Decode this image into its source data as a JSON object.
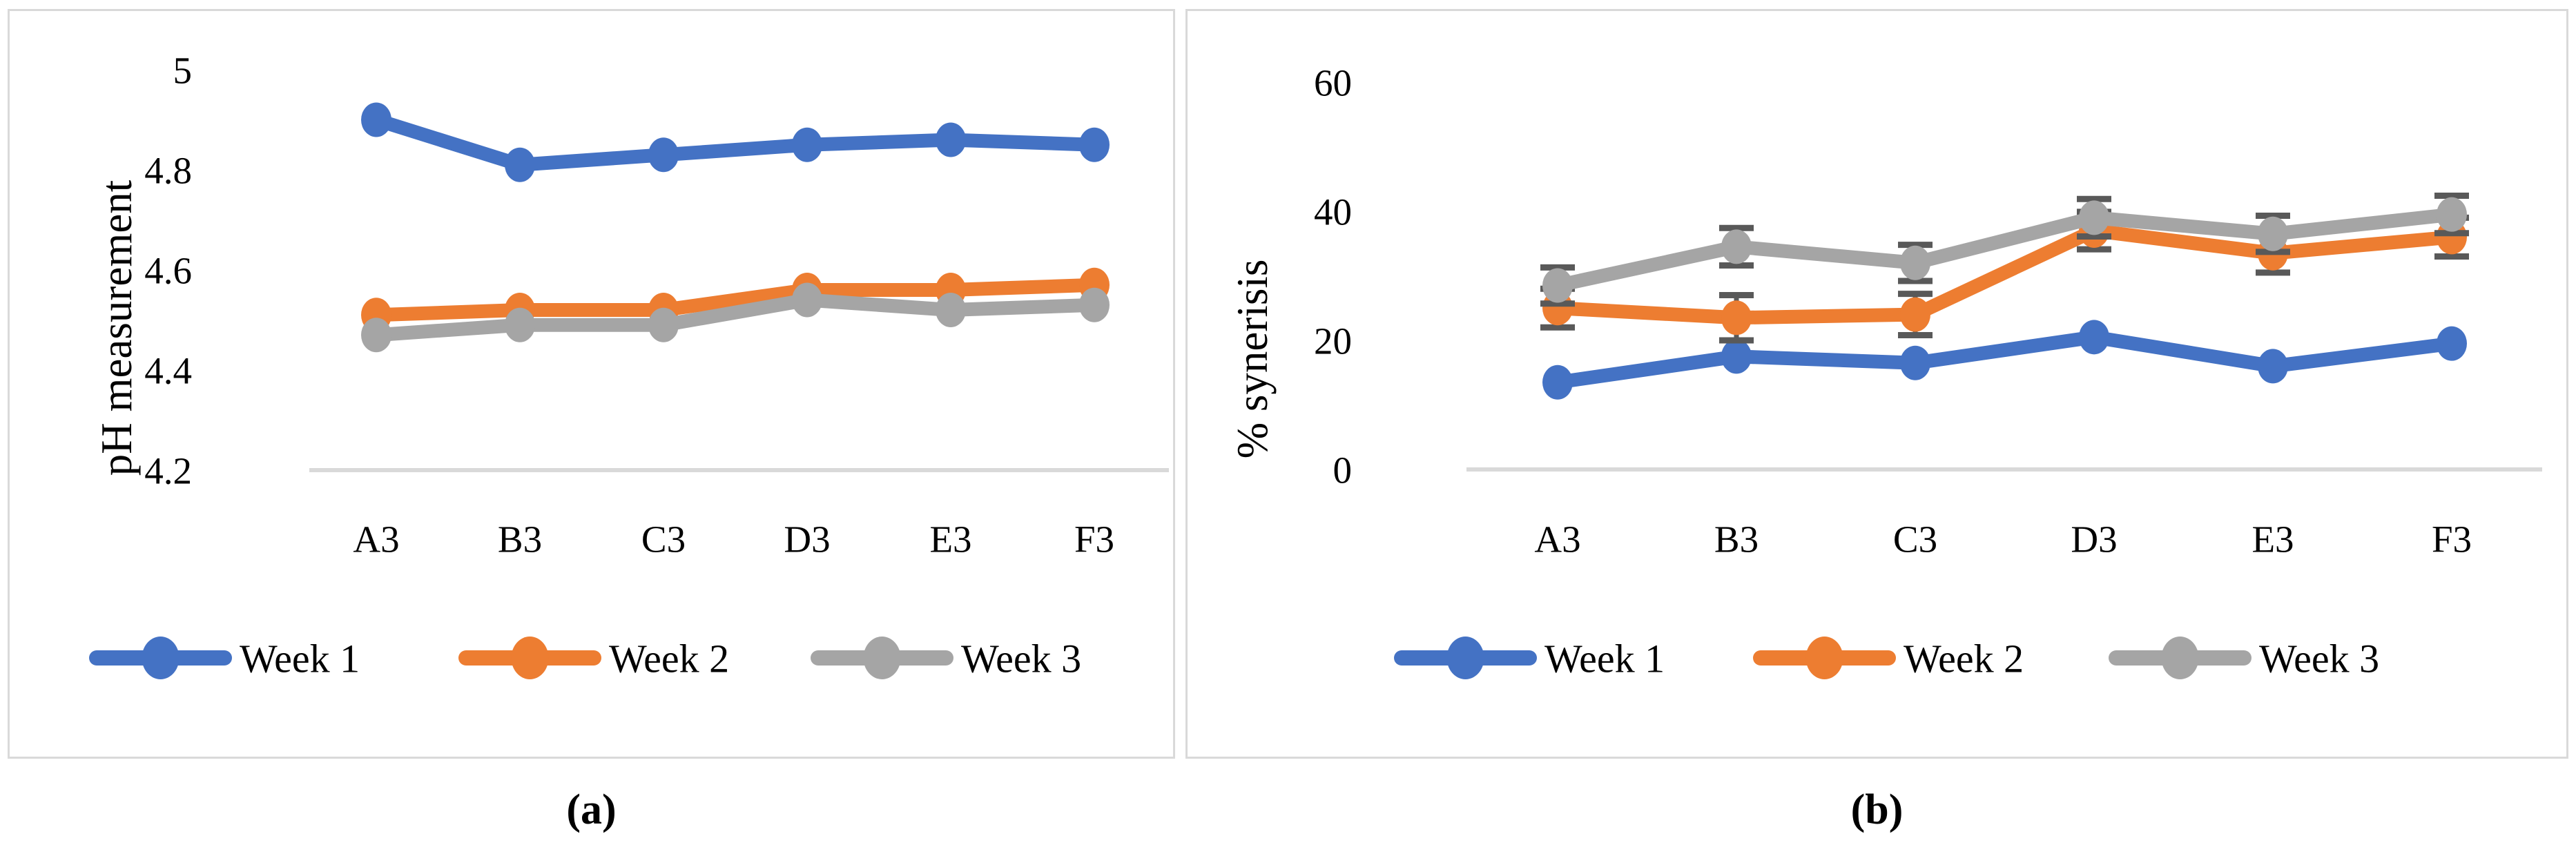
{
  "figure": {
    "background": "#FFFFFF",
    "panel_border_color": "#D9D9D9",
    "captions": {
      "a": "(a)",
      "b": "(b)"
    }
  },
  "chart_data": [
    {
      "id": "ph",
      "panel": "a",
      "type": "line",
      "title": "",
      "xlabel": "",
      "ylabel": "pH measurement",
      "categories": [
        "A3",
        "B3",
        "C3",
        "D3",
        "E3",
        "F3"
      ],
      "ytick_labels": [
        "5",
        "4.8",
        "4.6",
        "4.4",
        "4.2"
      ],
      "ylim": [
        4.2,
        5.0
      ],
      "grid": false,
      "legend_position": "bottom",
      "axis_line_color": "#D9D9D9",
      "series": [
        {
          "name": "Week 1",
          "color": "#4472C4",
          "values": [
            4.9,
            4.81,
            4.83,
            4.85,
            4.86,
            4.85
          ]
        },
        {
          "name": "Week 2",
          "color": "#ED7D31",
          "values": [
            4.51,
            4.52,
            4.52,
            4.56,
            4.56,
            4.57
          ]
        },
        {
          "name": "Week 3",
          "color": "#A5A5A5",
          "values": [
            4.47,
            4.49,
            4.49,
            4.54,
            4.52,
            4.53
          ]
        }
      ]
    },
    {
      "id": "synerisis",
      "panel": "b",
      "type": "line",
      "title": "",
      "xlabel": "",
      "ylabel": "% synerisis",
      "categories": [
        "A3",
        "B3",
        "C3",
        "D3",
        "E3",
        "F3"
      ],
      "ytick_labels": [
        "60",
        "40",
        "20",
        "0"
      ],
      "ylim": [
        0,
        60
      ],
      "grid": false,
      "legend_position": "bottom",
      "axis_line_color": "#D9D9D9",
      "error_bar_color": "#595959",
      "series": [
        {
          "name": "Week 1",
          "color": "#4472C4",
          "values": [
            13.5,
            17.5,
            16.5,
            20.5,
            16,
            19.5
          ]
        },
        {
          "name": "Week 2",
          "color": "#ED7D31",
          "values": [
            25,
            23.5,
            24,
            37,
            33.5,
            36
          ],
          "errors": [
            3.0,
            3.5,
            3.2,
            2.9,
            3.0,
            3.0
          ]
        },
        {
          "name": "Week 3",
          "color": "#A5A5A5",
          "values": [
            28.5,
            34.5,
            32,
            39,
            36.5,
            39.5
          ],
          "errors": [
            2.8,
            2.9,
            2.8,
            2.9,
            2.8,
            2.9
          ]
        }
      ]
    }
  ]
}
